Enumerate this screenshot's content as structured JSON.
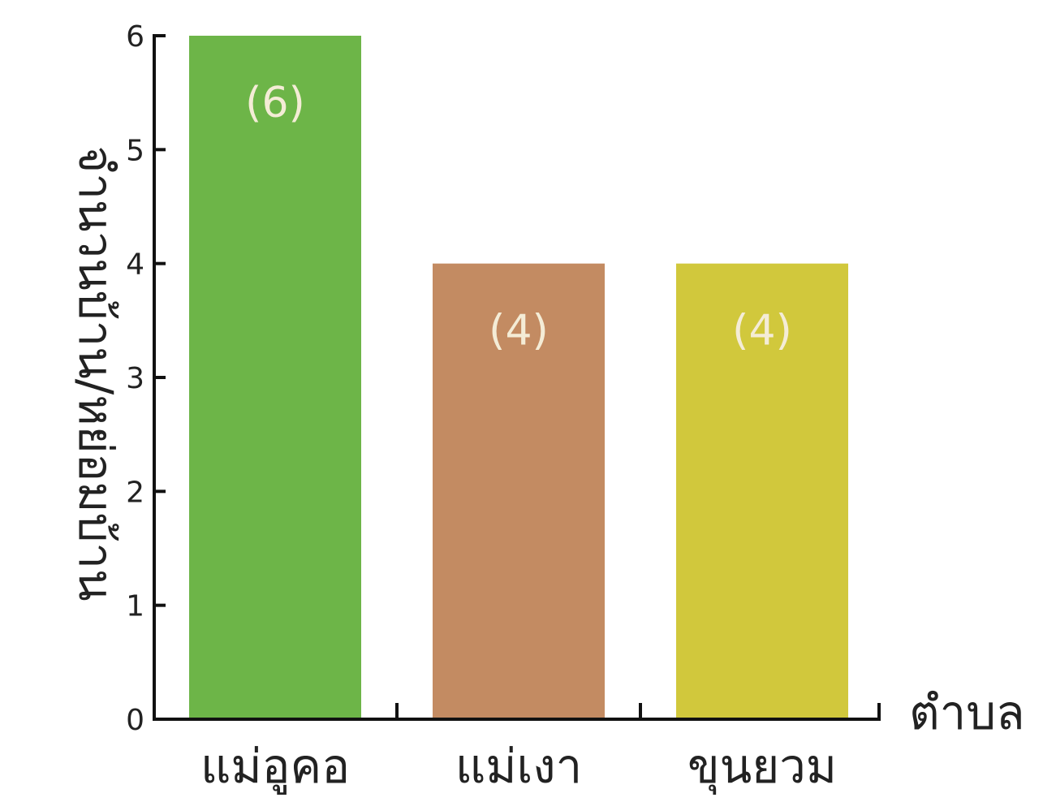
{
  "chart_data": {
    "type": "bar",
    "categories": [
      "แม่อูคอ",
      "แม่เงา",
      "ขุนยวม"
    ],
    "values": [
      6,
      4,
      4
    ],
    "data_labels": [
      "(6)",
      "(4)",
      "(4)"
    ],
    "colors": [
      "#6db548",
      "#c38b62",
      "#d1c83c"
    ],
    "ylabel": "จำนวนบ้าน/หย่อมบ้าน",
    "xlabel": "ตำบล",
    "ylim": [
      0,
      6
    ],
    "yticks": [
      0,
      1,
      2,
      3,
      4,
      5,
      6
    ],
    "grid": false,
    "legend": "none"
  }
}
